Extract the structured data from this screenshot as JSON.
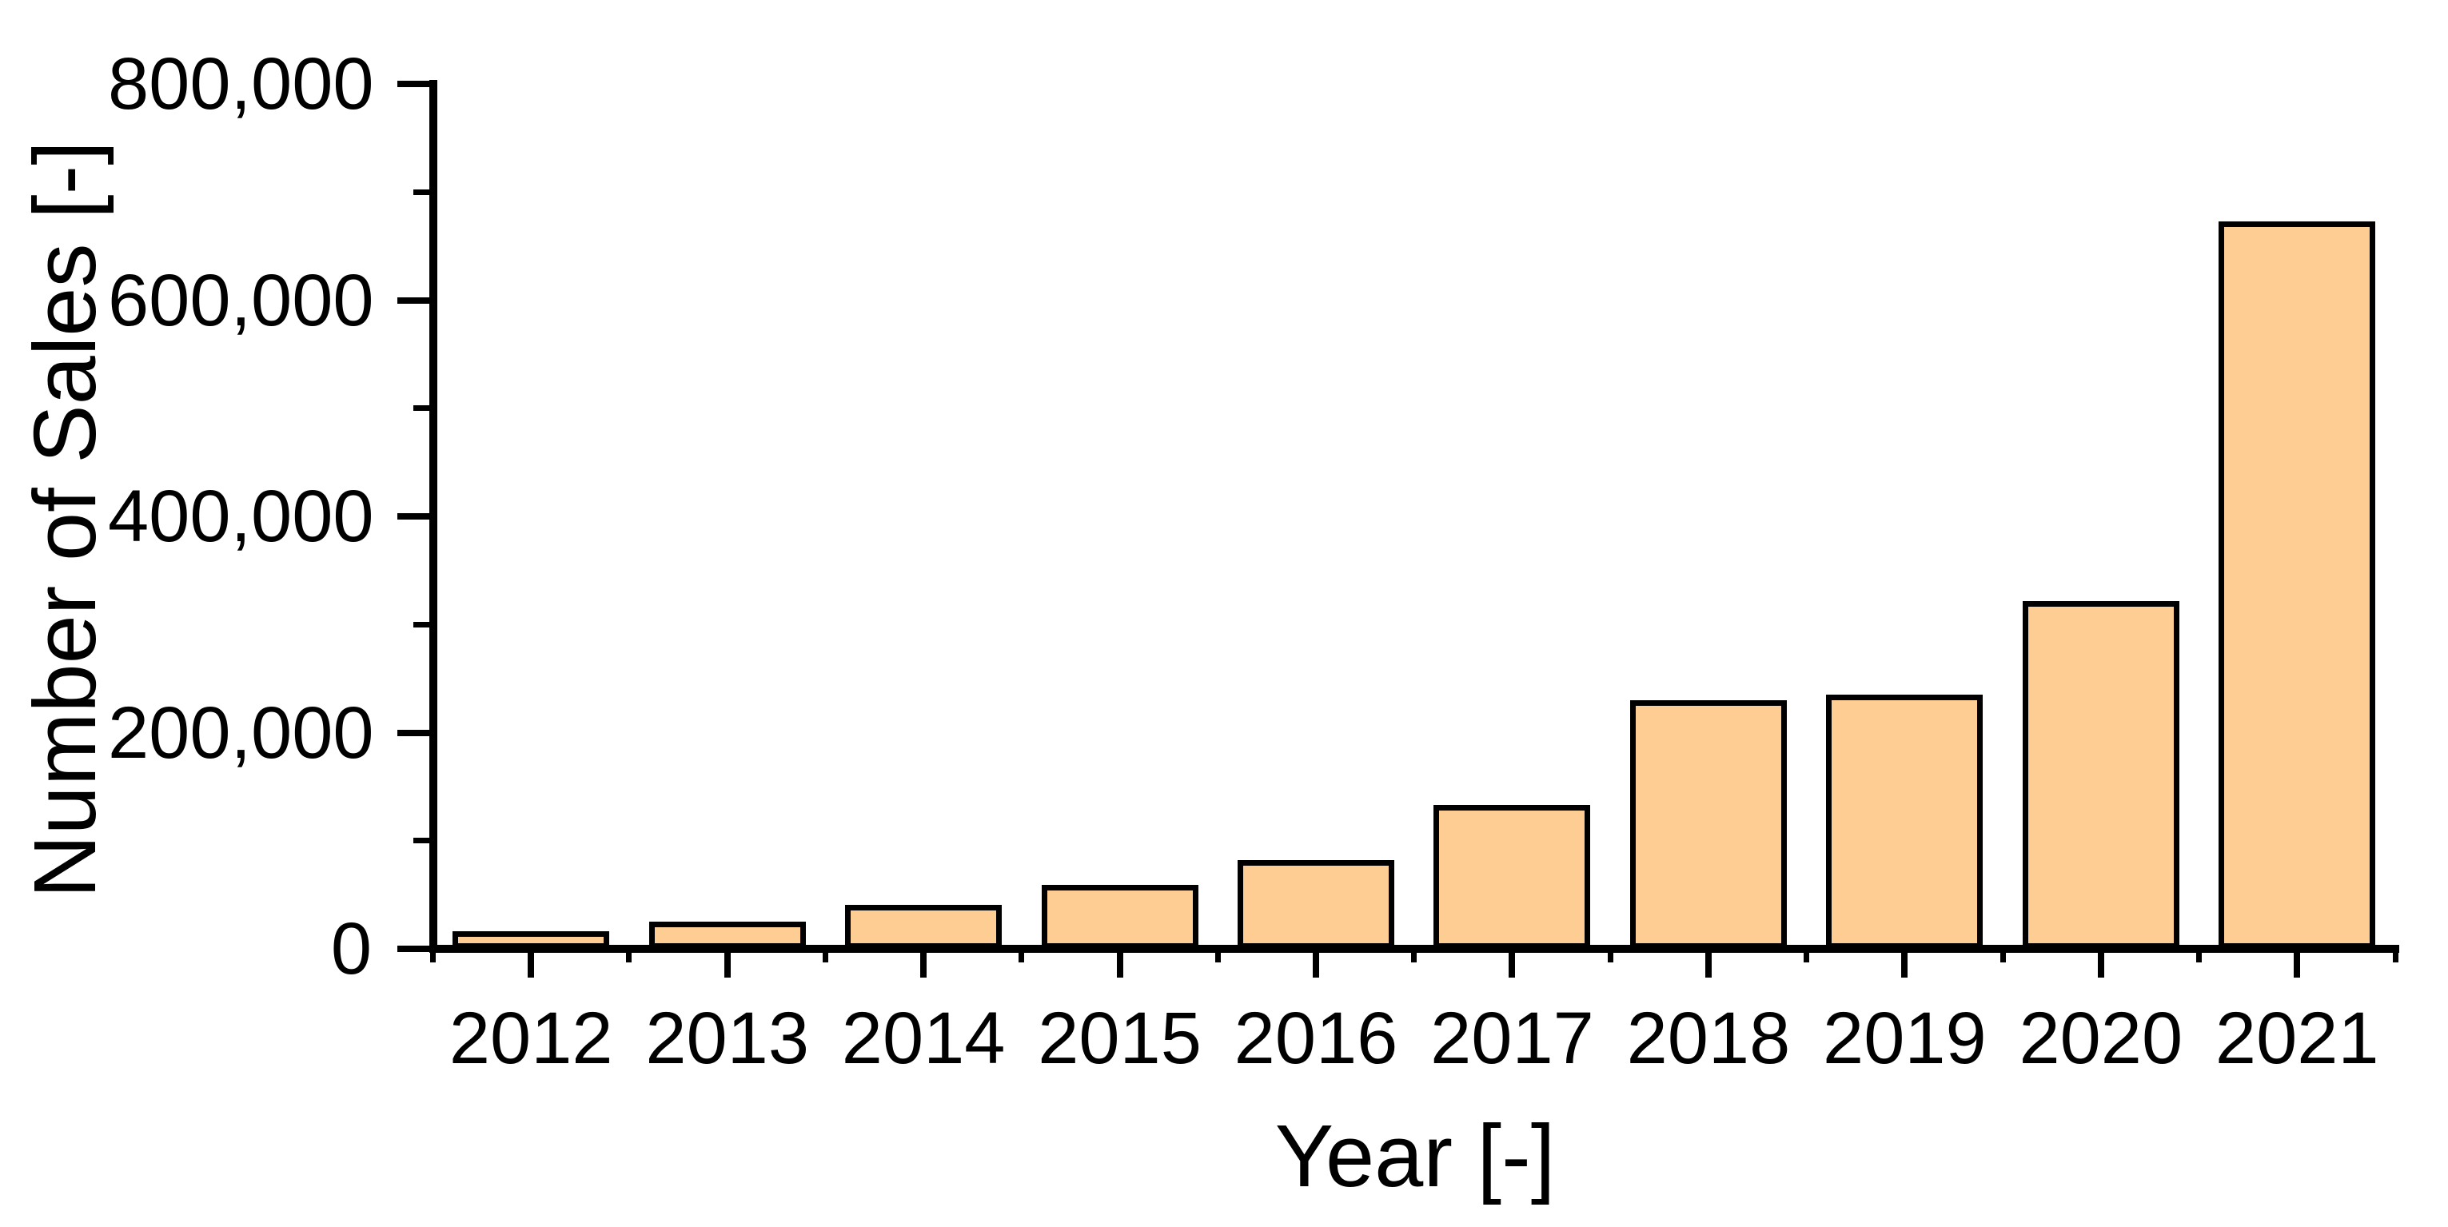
{
  "chart_data": {
    "type": "bar",
    "title": "",
    "xlabel": "Year [-]",
    "ylabel": "Number of Sales [-]",
    "categories": [
      "2012",
      "2013",
      "2014",
      "2015",
      "2016",
      "2017",
      "2018",
      "2019",
      "2020",
      "2021"
    ],
    "values": [
      13000,
      22000,
      38000,
      56000,
      79000,
      130000,
      227000,
      232000,
      319000,
      670000
    ],
    "ylim": [
      0,
      800000
    ],
    "y_major_step": 200000,
    "y_minor_step": 100000,
    "y_tick_labels": [
      "0",
      "200,000",
      "400,000",
      "600,000",
      "800,000"
    ],
    "grid": "off",
    "legend": "none",
    "bar_fill_color": "#FECD93",
    "bar_stroke_color": "#000000",
    "axis_color": "#000000"
  }
}
